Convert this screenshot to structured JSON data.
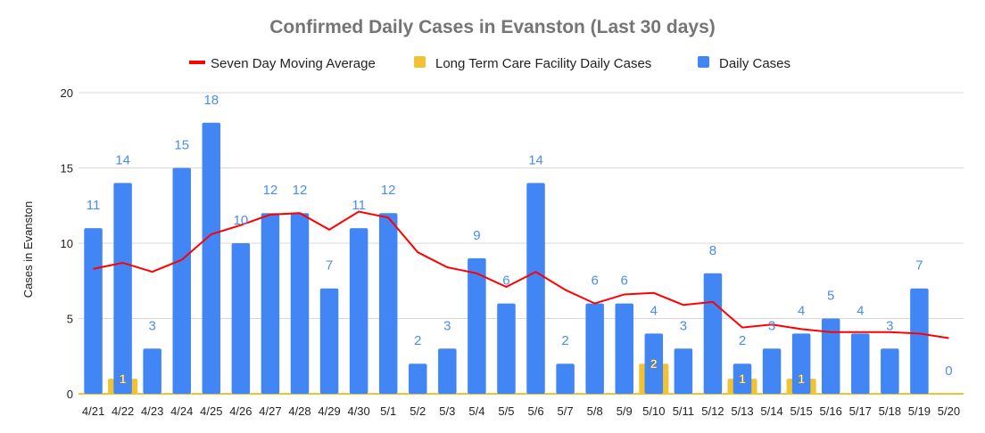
{
  "chart_data": {
    "type": "bar",
    "title": "Confirmed Daily Cases in Evanston (Last 30 days)",
    "xlabel": "",
    "ylabel": "Cases in Evanston",
    "ylim": [
      0,
      20
    ],
    "yticks": [
      0,
      5,
      10,
      15,
      20
    ],
    "grid": true,
    "legend_placement": "top",
    "categories": [
      "4/21",
      "4/22",
      "4/23",
      "4/24",
      "4/25",
      "4/26",
      "4/27",
      "4/28",
      "4/29",
      "4/30",
      "5/1",
      "5/2",
      "5/3",
      "5/4",
      "5/5",
      "5/6",
      "5/7",
      "5/8",
      "5/9",
      "5/10",
      "5/11",
      "5/12",
      "5/13",
      "5/14",
      "5/15",
      "5/16",
      "5/17",
      "5/18",
      "5/19",
      "5/20"
    ],
    "series": [
      {
        "name": "Seven Day Moving Average",
        "type": "line",
        "color": "#ff0000",
        "values": [
          8.3,
          8.7,
          8.1,
          8.9,
          10.6,
          11.2,
          11.9,
          12.0,
          10.9,
          12.1,
          11.7,
          9.4,
          8.4,
          8.0,
          7.1,
          8.1,
          6.9,
          6.0,
          6.6,
          6.7,
          5.9,
          6.1,
          4.4,
          4.6,
          4.3,
          4.1,
          4.1,
          4.1,
          4.0,
          3.7
        ]
      },
      {
        "name": "Long Term Care Facility Daily Cases",
        "type": "bar",
        "color": "#f1c232",
        "values": [
          0,
          1,
          0,
          0,
          0,
          0,
          0,
          0,
          0,
          0,
          0,
          0,
          0,
          0,
          0,
          0,
          0,
          0,
          0,
          2,
          0,
          0,
          1,
          0,
          1,
          0,
          0,
          0,
          0,
          0
        ]
      },
      {
        "name": "Daily Cases",
        "type": "bar",
        "color": "#4285f4",
        "values": [
          11,
          14,
          3,
          15,
          18,
          10,
          12,
          12,
          7,
          11,
          12,
          2,
          3,
          9,
          6,
          14,
          2,
          6,
          6,
          4,
          3,
          8,
          2,
          3,
          4,
          5,
          4,
          3,
          7,
          0
        ]
      }
    ]
  }
}
